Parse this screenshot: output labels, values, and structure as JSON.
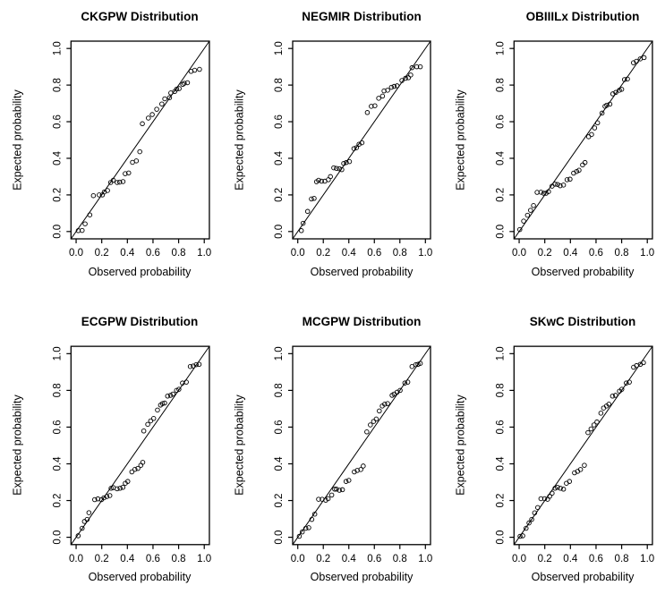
{
  "page": {
    "background": "#ffffff",
    "foreground": "#000000"
  },
  "chart_data": [
    {
      "type": "scatter",
      "title": "CKGPW Distribution",
      "xlabel": "Observed probability",
      "ylabel": "Expected probability",
      "xlim": [
        0,
        1
      ],
      "ylim": [
        0,
        1
      ],
      "xticks": [
        0,
        0.2,
        0.4,
        0.6,
        0.8,
        1
      ],
      "yticks": [
        0,
        0.2,
        0.4,
        0.6,
        0.8,
        1
      ],
      "grid": false,
      "legend": null,
      "reference_line": "y=x",
      "marker": "open-circle",
      "color": "#000000",
      "points": [
        [
          0.017,
          0.005
        ],
        [
          0.047,
          0.006
        ],
        [
          0.07,
          0.042
        ],
        [
          0.107,
          0.091
        ],
        [
          0.135,
          0.196
        ],
        [
          0.18,
          0.2
        ],
        [
          0.205,
          0.2
        ],
        [
          0.22,
          0.216
        ],
        [
          0.245,
          0.224
        ],
        [
          0.27,
          0.268
        ],
        [
          0.29,
          0.28
        ],
        [
          0.32,
          0.268
        ],
        [
          0.34,
          0.27
        ],
        [
          0.366,
          0.273
        ],
        [
          0.383,
          0.316
        ],
        [
          0.41,
          0.32
        ],
        [
          0.44,
          0.378
        ],
        [
          0.47,
          0.386
        ],
        [
          0.497,
          0.436
        ],
        [
          0.517,
          0.589
        ],
        [
          0.564,
          0.62
        ],
        [
          0.594,
          0.639
        ],
        [
          0.629,
          0.668
        ],
        [
          0.669,
          0.697
        ],
        [
          0.692,
          0.725
        ],
        [
          0.729,
          0.731
        ],
        [
          0.739,
          0.757
        ],
        [
          0.769,
          0.765
        ],
        [
          0.785,
          0.778
        ],
        [
          0.804,
          0.781
        ],
        [
          0.832,
          0.804
        ],
        [
          0.844,
          0.81
        ],
        [
          0.869,
          0.813
        ],
        [
          0.897,
          0.875
        ],
        [
          0.925,
          0.881
        ],
        [
          0.963,
          0.886
        ]
      ]
    },
    {
      "type": "scatter",
      "title": "NEGMIR Distribution",
      "xlabel": "Observed probability",
      "ylabel": "Expected probability",
      "xlim": [
        0,
        1
      ],
      "ylim": [
        0,
        1
      ],
      "xticks": [
        0,
        0.2,
        0.4,
        0.6,
        0.8,
        1
      ],
      "yticks": [
        0,
        0.2,
        0.4,
        0.6,
        0.8,
        1
      ],
      "grid": false,
      "legend": null,
      "reference_line": "y=x",
      "marker": "open-circle",
      "color": "#000000",
      "points": [
        [
          0.028,
          0.005
        ],
        [
          0.042,
          0.045
        ],
        [
          0.077,
          0.11
        ],
        [
          0.107,
          0.178
        ],
        [
          0.128,
          0.181
        ],
        [
          0.147,
          0.272
        ],
        [
          0.163,
          0.28
        ],
        [
          0.186,
          0.275
        ],
        [
          0.212,
          0.275
        ],
        [
          0.24,
          0.283
        ],
        [
          0.256,
          0.3
        ],
        [
          0.282,
          0.348
        ],
        [
          0.303,
          0.345
        ],
        [
          0.326,
          0.343
        ],
        [
          0.345,
          0.338
        ],
        [
          0.36,
          0.372
        ],
        [
          0.38,
          0.377
        ],
        [
          0.405,
          0.382
        ],
        [
          0.44,
          0.453
        ],
        [
          0.46,
          0.458
        ],
        [
          0.48,
          0.477
        ],
        [
          0.503,
          0.485
        ],
        [
          0.545,
          0.65
        ],
        [
          0.576,
          0.684
        ],
        [
          0.604,
          0.687
        ],
        [
          0.634,
          0.728
        ],
        [
          0.664,
          0.74
        ],
        [
          0.676,
          0.768
        ],
        [
          0.704,
          0.772
        ],
        [
          0.734,
          0.788
        ],
        [
          0.755,
          0.793
        ],
        [
          0.778,
          0.796
        ],
        [
          0.816,
          0.825
        ],
        [
          0.844,
          0.837
        ],
        [
          0.867,
          0.84
        ],
        [
          0.885,
          0.855
        ],
        [
          0.895,
          0.895
        ],
        [
          0.932,
          0.9
        ],
        [
          0.96,
          0.9
        ]
      ]
    },
    {
      "type": "scatter",
      "title": "OBIIILx Distribution",
      "xlabel": "Observed probability",
      "ylabel": "Expected probability",
      "xlim": [
        0,
        1
      ],
      "ylim": [
        0,
        1
      ],
      "xticks": [
        0,
        0.2,
        0.4,
        0.6,
        0.8,
        1
      ],
      "yticks": [
        0,
        0.2,
        0.4,
        0.6,
        0.8,
        1
      ],
      "grid": false,
      "legend": null,
      "reference_line": "y=x",
      "marker": "open-circle",
      "color": "#000000",
      "points": [
        [
          0.005,
          0.011
        ],
        [
          0.035,
          0.057
        ],
        [
          0.065,
          0.089
        ],
        [
          0.089,
          0.116
        ],
        [
          0.112,
          0.142
        ],
        [
          0.14,
          0.214
        ],
        [
          0.17,
          0.215
        ],
        [
          0.192,
          0.209
        ],
        [
          0.21,
          0.209
        ],
        [
          0.229,
          0.218
        ],
        [
          0.257,
          0.248
        ],
        [
          0.28,
          0.259
        ],
        [
          0.3,
          0.257
        ],
        [
          0.32,
          0.25
        ],
        [
          0.346,
          0.254
        ],
        [
          0.374,
          0.283
        ],
        [
          0.397,
          0.286
        ],
        [
          0.425,
          0.319
        ],
        [
          0.449,
          0.328
        ],
        [
          0.467,
          0.335
        ],
        [
          0.495,
          0.364
        ],
        [
          0.514,
          0.377
        ],
        [
          0.542,
          0.518
        ],
        [
          0.565,
          0.53
        ],
        [
          0.589,
          0.566
        ],
        [
          0.612,
          0.594
        ],
        [
          0.647,
          0.647
        ],
        [
          0.67,
          0.684
        ],
        [
          0.684,
          0.69
        ],
        [
          0.708,
          0.696
        ],
        [
          0.731,
          0.752
        ],
        [
          0.754,
          0.76
        ],
        [
          0.782,
          0.772
        ],
        [
          0.8,
          0.777
        ],
        [
          0.822,
          0.83
        ],
        [
          0.845,
          0.833
        ],
        [
          0.892,
          0.922
        ],
        [
          0.915,
          0.93
        ],
        [
          0.945,
          0.943
        ],
        [
          0.975,
          0.95
        ]
      ]
    },
    {
      "type": "scatter",
      "title": "ECGPW Distribution",
      "xlabel": "Observed probability",
      "ylabel": "Expected probability",
      "xlim": [
        0,
        1
      ],
      "ylim": [
        0,
        1
      ],
      "xticks": [
        0,
        0.2,
        0.4,
        0.6,
        0.8,
        1
      ],
      "yticks": [
        0,
        0.2,
        0.4,
        0.6,
        0.8,
        1
      ],
      "grid": false,
      "legend": null,
      "reference_line": "y=x",
      "marker": "open-circle",
      "color": "#000000",
      "points": [
        [
          0.016,
          0.008
        ],
        [
          0.047,
          0.049
        ],
        [
          0.065,
          0.086
        ],
        [
          0.086,
          0.097
        ],
        [
          0.1,
          0.134
        ],
        [
          0.145,
          0.205
        ],
        [
          0.17,
          0.209
        ],
        [
          0.198,
          0.205
        ],
        [
          0.217,
          0.215
        ],
        [
          0.24,
          0.222
        ],
        [
          0.263,
          0.227
        ],
        [
          0.273,
          0.267
        ],
        [
          0.291,
          0.27
        ],
        [
          0.32,
          0.264
        ],
        [
          0.343,
          0.267
        ],
        [
          0.365,
          0.272
        ],
        [
          0.384,
          0.294
        ],
        [
          0.403,
          0.304
        ],
        [
          0.435,
          0.356
        ],
        [
          0.459,
          0.37
        ],
        [
          0.482,
          0.375
        ],
        [
          0.505,
          0.392
        ],
        [
          0.52,
          0.408
        ],
        [
          0.528,
          0.579
        ],
        [
          0.559,
          0.615
        ],
        [
          0.582,
          0.634
        ],
        [
          0.605,
          0.647
        ],
        [
          0.635,
          0.693
        ],
        [
          0.659,
          0.72
        ],
        [
          0.674,
          0.728
        ],
        [
          0.691,
          0.731
        ],
        [
          0.714,
          0.769
        ],
        [
          0.737,
          0.773
        ],
        [
          0.756,
          0.78
        ],
        [
          0.784,
          0.8
        ],
        [
          0.802,
          0.806
        ],
        [
          0.83,
          0.84
        ],
        [
          0.86,
          0.845
        ],
        [
          0.891,
          0.93
        ],
        [
          0.914,
          0.933
        ],
        [
          0.937,
          0.94
        ],
        [
          0.96,
          0.942
        ]
      ]
    },
    {
      "type": "scatter",
      "title": "MCGPW Distribution",
      "xlabel": "Observed probability",
      "ylabel": "Expected probability",
      "xlim": [
        0,
        1
      ],
      "ylim": [
        0,
        1
      ],
      "xticks": [
        0,
        0.2,
        0.4,
        0.6,
        0.8,
        1
      ],
      "yticks": [
        0,
        0.2,
        0.4,
        0.6,
        0.8,
        1
      ],
      "grid": false,
      "legend": null,
      "reference_line": "y=x",
      "marker": "open-circle",
      "color": "#000000",
      "points": [
        [
          0.012,
          0.005
        ],
        [
          0.035,
          0.029
        ],
        [
          0.063,
          0.049
        ],
        [
          0.086,
          0.052
        ],
        [
          0.11,
          0.097
        ],
        [
          0.133,
          0.126
        ],
        [
          0.163,
          0.207
        ],
        [
          0.191,
          0.207
        ],
        [
          0.219,
          0.202
        ],
        [
          0.238,
          0.21
        ],
        [
          0.266,
          0.23
        ],
        [
          0.289,
          0.262
        ],
        [
          0.303,
          0.262
        ],
        [
          0.326,
          0.256
        ],
        [
          0.35,
          0.259
        ],
        [
          0.378,
          0.304
        ],
        [
          0.4,
          0.31
        ],
        [
          0.443,
          0.356
        ],
        [
          0.466,
          0.364
        ],
        [
          0.494,
          0.369
        ],
        [
          0.513,
          0.388
        ],
        [
          0.541,
          0.574
        ],
        [
          0.569,
          0.612
        ],
        [
          0.594,
          0.631
        ],
        [
          0.615,
          0.644
        ],
        [
          0.639,
          0.688
        ],
        [
          0.662,
          0.715
        ],
        [
          0.681,
          0.725
        ],
        [
          0.704,
          0.728
        ],
        [
          0.739,
          0.773
        ],
        [
          0.755,
          0.78
        ],
        [
          0.778,
          0.79
        ],
        [
          0.802,
          0.8
        ],
        [
          0.839,
          0.84
        ],
        [
          0.862,
          0.845
        ],
        [
          0.895,
          0.93
        ],
        [
          0.925,
          0.94
        ],
        [
          0.942,
          0.942
        ],
        [
          0.96,
          0.947
        ]
      ]
    },
    {
      "type": "scatter",
      "title": "SKwC Distribution",
      "xlabel": "Observed probability",
      "ylabel": "Expected probability",
      "xlim": [
        0,
        1
      ],
      "ylim": [
        0,
        1
      ],
      "xticks": [
        0,
        0.2,
        0.4,
        0.6,
        0.8,
        1
      ],
      "yticks": [
        0,
        0.2,
        0.4,
        0.6,
        0.8,
        1
      ],
      "grid": false,
      "legend": null,
      "reference_line": "y=x",
      "marker": "open-circle",
      "color": "#000000",
      "points": [
        [
          0.007,
          0.005
        ],
        [
          0.028,
          0.008
        ],
        [
          0.054,
          0.049
        ],
        [
          0.077,
          0.078
        ],
        [
          0.098,
          0.097
        ],
        [
          0.121,
          0.133
        ],
        [
          0.145,
          0.162
        ],
        [
          0.17,
          0.21
        ],
        [
          0.199,
          0.21
        ],
        [
          0.222,
          0.207
        ],
        [
          0.238,
          0.223
        ],
        [
          0.257,
          0.24
        ],
        [
          0.28,
          0.267
        ],
        [
          0.299,
          0.272
        ],
        [
          0.322,
          0.267
        ],
        [
          0.346,
          0.262
        ],
        [
          0.369,
          0.294
        ],
        [
          0.393,
          0.304
        ],
        [
          0.432,
          0.351
        ],
        [
          0.456,
          0.359
        ],
        [
          0.479,
          0.369
        ],
        [
          0.509,
          0.392
        ],
        [
          0.537,
          0.57
        ],
        [
          0.561,
          0.59
        ],
        [
          0.584,
          0.612
        ],
        [
          0.607,
          0.628
        ],
        [
          0.638,
          0.676
        ],
        [
          0.659,
          0.704
        ],
        [
          0.682,
          0.715
        ],
        [
          0.7,
          0.725
        ],
        [
          0.729,
          0.769
        ],
        [
          0.752,
          0.773
        ],
        [
          0.783,
          0.796
        ],
        [
          0.801,
          0.806
        ],
        [
          0.836,
          0.84
        ],
        [
          0.86,
          0.845
        ],
        [
          0.893,
          0.926
        ],
        [
          0.916,
          0.935
        ],
        [
          0.946,
          0.942
        ],
        [
          0.97,
          0.951
        ]
      ]
    }
  ]
}
